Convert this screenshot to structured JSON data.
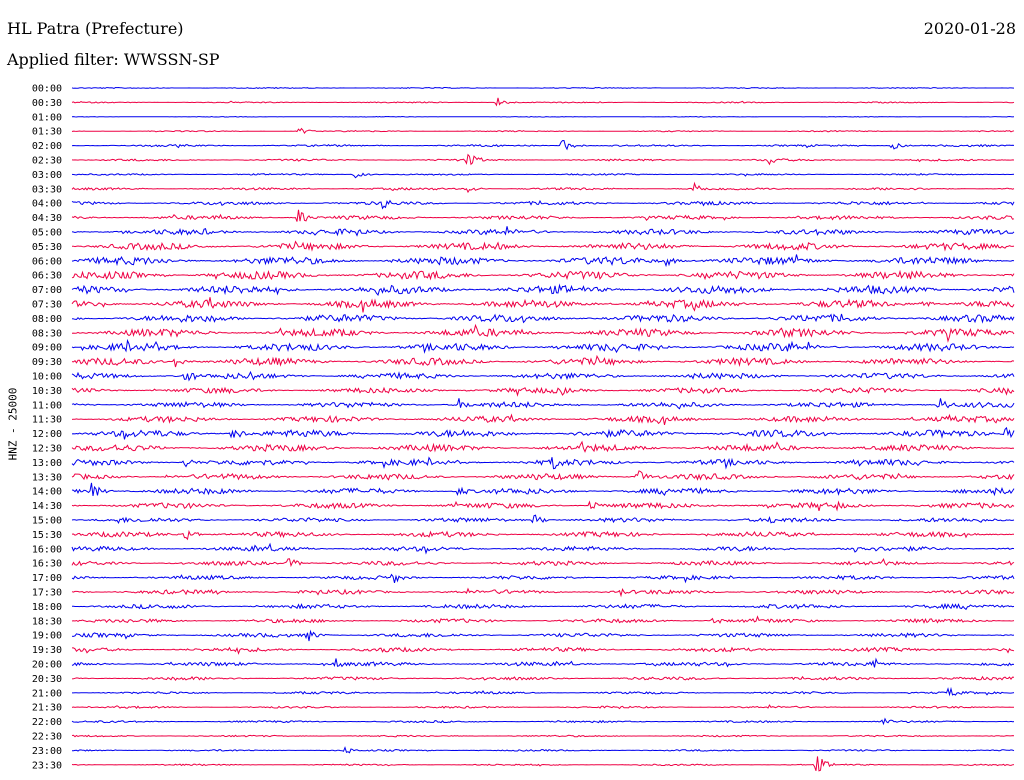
{
  "header": {
    "station": "HL Patra (Prefecture)",
    "date": "2020-01-28",
    "filter": "Applied filter: WWSSN-SP"
  },
  "chart_data": {
    "type": "line",
    "plot_kind": "helicorder",
    "channel_label": "HNZ - 25000",
    "colors": [
      "#0000ee",
      "#ee0044"
    ],
    "grid": false,
    "legend": "none",
    "rows": [
      "00:00",
      "00:30",
      "01:00",
      "01:30",
      "02:00",
      "02:30",
      "03:00",
      "03:30",
      "04:00",
      "04:30",
      "05:00",
      "05:30",
      "06:00",
      "06:30",
      "07:00",
      "07:30",
      "08:00",
      "08:30",
      "09:00",
      "09:30",
      "10:00",
      "10:30",
      "11:00",
      "11:30",
      "12:00",
      "12:30",
      "13:00",
      "13:30",
      "14:00",
      "14:30",
      "15:00",
      "15:30",
      "16:00",
      "16:30",
      "17:00",
      "17:30",
      "18:00",
      "18:30",
      "19:00",
      "19:30",
      "20:00",
      "20:30",
      "21:00",
      "21:30",
      "22:00",
      "22:30",
      "23:00",
      "23:30"
    ],
    "noise_levels": [
      0.5,
      0.6,
      0.3,
      0.6,
      1.0,
      1.0,
      0.8,
      1.2,
      1.8,
      2.0,
      2.8,
      3.5,
      4.0,
      4.0,
      4.2,
      4.0,
      3.8,
      4.0,
      3.8,
      3.6,
      3.0,
      2.8,
      2.8,
      3.0,
      3.6,
      3.4,
      3.0,
      3.0,
      3.0,
      2.8,
      2.2,
      2.6,
      2.4,
      2.2,
      2.0,
      2.2,
      2.2,
      2.0,
      2.0,
      2.0,
      2.0,
      1.6,
      1.2,
      1.0,
      1.0,
      0.8,
      0.8,
      0.8
    ],
    "events": [
      [
        1,
        0.45,
        6
      ],
      [
        3,
        0.24,
        4
      ],
      [
        4,
        0.52,
        7
      ],
      [
        4,
        0.87,
        4
      ],
      [
        5,
        0.42,
        9
      ],
      [
        5,
        0.74,
        6
      ],
      [
        6,
        0.3,
        4
      ],
      [
        7,
        0.42,
        4
      ],
      [
        7,
        0.66,
        7
      ],
      [
        8,
        0.33,
        7
      ],
      [
        8,
        0.67,
        6
      ],
      [
        9,
        0.24,
        9
      ],
      [
        10,
        0.14,
        4
      ],
      [
        11,
        0.45,
        5
      ],
      [
        12,
        0.63,
        6
      ],
      [
        15,
        0.9,
        6
      ],
      [
        17,
        0.75,
        7
      ],
      [
        18,
        0.05,
        9
      ],
      [
        18,
        0.76,
        8
      ],
      [
        19,
        0.11,
        6
      ],
      [
        20,
        0.12,
        9
      ],
      [
        20,
        0.19,
        7
      ],
      [
        21,
        0.52,
        5
      ],
      [
        22,
        0.41,
        7
      ],
      [
        22,
        0.92,
        9
      ],
      [
        23,
        0.62,
        6
      ],
      [
        24,
        0.17,
        9
      ],
      [
        24,
        0.99,
        9
      ],
      [
        25,
        0.54,
        6
      ],
      [
        26,
        0.12,
        6
      ],
      [
        26,
        0.51,
        9
      ],
      [
        27,
        0.6,
        8
      ],
      [
        28,
        0.02,
        9
      ],
      [
        28,
        0.41,
        6
      ],
      [
        29,
        0.55,
        7
      ],
      [
        29,
        0.81,
        6
      ],
      [
        30,
        0.05,
        5
      ],
      [
        30,
        0.49,
        6
      ],
      [
        30,
        0.74,
        5
      ],
      [
        31,
        0.12,
        8
      ],
      [
        32,
        0.83,
        7
      ],
      [
        33,
        0.23,
        6
      ],
      [
        34,
        0.34,
        7
      ],
      [
        35,
        0.58,
        5
      ],
      [
        37,
        0.68,
        5
      ],
      [
        38,
        0.25,
        7
      ],
      [
        39,
        0.33,
        5
      ],
      [
        40,
        0.28,
        6
      ],
      [
        40,
        0.85,
        7
      ],
      [
        42,
        0.93,
        6
      ],
      [
        44,
        0.86,
        4
      ],
      [
        46,
        0.29,
        4
      ],
      [
        47,
        0.79,
        10
      ]
    ]
  }
}
